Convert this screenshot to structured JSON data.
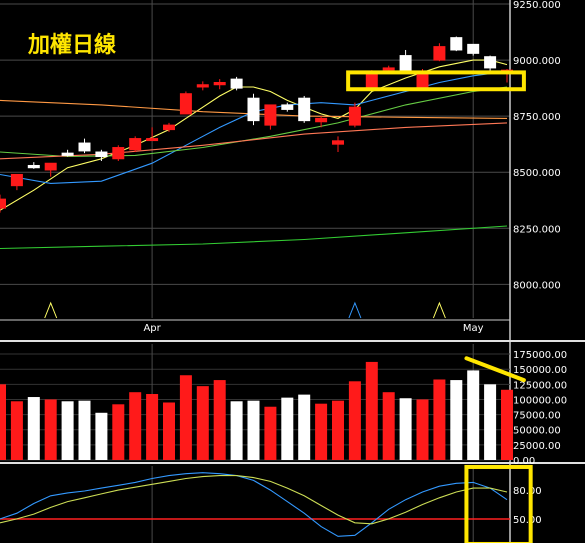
{
  "title": "加權日線",
  "colors": {
    "background": "#000000",
    "up": "#ff1a1a",
    "down": "#ffffff",
    "grid": "#4a4a4a",
    "annotation": "#ffe600",
    "ma_yellow": "#ffff66",
    "ma_blue": "#3399ff",
    "ma_green": "#66cc44",
    "ma_red": "#ff7755",
    "ma_orange": "#ff9944",
    "ma_longgreen": "#33cc33",
    "k_line": "#3399ff",
    "d_line": "#ccdd55",
    "ref_line": "#ff2020"
  },
  "chart_data": [
    {
      "type": "candlestick",
      "panel": "price",
      "ylim": [
        7850,
        9250
      ],
      "yticks": [
        "9250.000",
        "9000.000",
        "8750.000",
        "8500.000",
        "8250.000",
        "8000.000"
      ],
      "ytick_values": [
        9250,
        9000,
        8750,
        8500,
        8250,
        8000
      ],
      "xtick_labels": [
        {
          "label": "Apr",
          "index": 9
        },
        {
          "label": "May",
          "index": 28
        }
      ],
      "candles": [
        {
          "o": 8340,
          "h": 8400,
          "l": 8320,
          "c": 8380
        },
        {
          "o": 8440,
          "h": 8490,
          "l": 8420,
          "c": 8490
        },
        {
          "o": 8530,
          "h": 8545,
          "l": 8515,
          "c": 8520
        },
        {
          "o": 8510,
          "h": 8540,
          "l": 8480,
          "c": 8540
        },
        {
          "o": 8585,
          "h": 8600,
          "l": 8570,
          "c": 8575
        },
        {
          "o": 8630,
          "h": 8650,
          "l": 8585,
          "c": 8595
        },
        {
          "o": 8590,
          "h": 8600,
          "l": 8550,
          "c": 8570
        },
        {
          "o": 8560,
          "h": 8620,
          "l": 8550,
          "c": 8610
        },
        {
          "o": 8600,
          "h": 8660,
          "l": 8590,
          "c": 8650
        },
        {
          "o": 8650,
          "h": 8700,
          "l": 8640,
          "c": 8650
        },
        {
          "o": 8690,
          "h": 8720,
          "l": 8680,
          "c": 8710
        },
        {
          "o": 8760,
          "h": 8860,
          "l": 8760,
          "c": 8850
        },
        {
          "o": 8880,
          "h": 8905,
          "l": 8865,
          "c": 8890
        },
        {
          "o": 8890,
          "h": 8915,
          "l": 8870,
          "c": 8900
        },
        {
          "o": 8915,
          "h": 8925,
          "l": 8865,
          "c": 8875
        },
        {
          "o": 8830,
          "h": 8850,
          "l": 8710,
          "c": 8730
        },
        {
          "o": 8710,
          "h": 8800,
          "l": 8690,
          "c": 8800
        },
        {
          "o": 8800,
          "h": 8810,
          "l": 8770,
          "c": 8780
        },
        {
          "o": 8830,
          "h": 8840,
          "l": 8720,
          "c": 8730
        },
        {
          "o": 8725,
          "h": 8750,
          "l": 8700,
          "c": 8740
        },
        {
          "o": 8625,
          "h": 8660,
          "l": 8590,
          "c": 8640
        },
        {
          "o": 8710,
          "h": 8810,
          "l": 8700,
          "c": 8790
        },
        {
          "o": 8880,
          "h": 8955,
          "l": 8870,
          "c": 8950
        },
        {
          "o": 8960,
          "h": 8975,
          "l": 8950,
          "c": 8965
        },
        {
          "o": 9020,
          "h": 9045,
          "l": 8945,
          "c": 8955
        },
        {
          "o": 8880,
          "h": 8960,
          "l": 8870,
          "c": 8950
        },
        {
          "o": 9000,
          "h": 9075,
          "l": 8995,
          "c": 9060
        },
        {
          "o": 9100,
          "h": 9105,
          "l": 9040,
          "c": 9045
        },
        {
          "o": 9070,
          "h": 9070,
          "l": 9020,
          "c": 9030
        },
        {
          "o": 9015,
          "h": 9020,
          "l": 8945,
          "c": 8965
        },
        {
          "o": 8940,
          "h": 8960,
          "l": 8900,
          "c": 8955
        }
      ],
      "moving_averages": [
        {
          "color_key": "ma_yellow",
          "points": [
            [
              0,
              8330
            ],
            [
              2,
              8420
            ],
            [
              4,
              8520
            ],
            [
              6,
              8560
            ],
            [
              8,
              8620
            ],
            [
              10,
              8690
            ],
            [
              12,
              8790
            ],
            [
              13,
              8840
            ],
            [
              14,
              8880
            ],
            [
              15,
              8880
            ],
            [
              16,
              8860
            ],
            [
              17,
              8820
            ],
            [
              18,
              8790
            ],
            [
              19,
              8760
            ],
            [
              20,
              8740
            ],
            [
              21,
              8780
            ],
            [
              22,
              8860
            ],
            [
              24,
              8920
            ],
            [
              26,
              8970
            ],
            [
              28,
              9000
            ],
            [
              29,
              9000
            ],
            [
              30,
              8980
            ]
          ]
        },
        {
          "color_key": "ma_blue",
          "points": [
            [
              0,
              8490
            ],
            [
              3,
              8450
            ],
            [
              6,
              8460
            ],
            [
              9,
              8540
            ],
            [
              11,
              8620
            ],
            [
              13,
              8700
            ],
            [
              15,
              8770
            ],
            [
              17,
              8800
            ],
            [
              19,
              8810
            ],
            [
              21,
              8800
            ],
            [
              22,
              8820
            ],
            [
              24,
              8860
            ],
            [
              26,
              8900
            ],
            [
              28,
              8930
            ],
            [
              30,
              8950
            ]
          ]
        },
        {
          "color_key": "ma_green",
          "points": [
            [
              0,
              8590
            ],
            [
              4,
              8570
            ],
            [
              8,
              8575
            ],
            [
              12,
              8610
            ],
            [
              16,
              8660
            ],
            [
              20,
              8720
            ],
            [
              24,
              8800
            ],
            [
              28,
              8860
            ],
            [
              30,
              8880
            ]
          ]
        },
        {
          "color_key": "ma_red",
          "points": [
            [
              0,
              8560
            ],
            [
              6,
              8580
            ],
            [
              12,
              8620
            ],
            [
              18,
              8670
            ],
            [
              24,
              8700
            ],
            [
              30,
              8720
            ]
          ]
        },
        {
          "color_key": "ma_orange",
          "points": [
            [
              0,
              8820
            ],
            [
              6,
              8800
            ],
            [
              12,
              8770
            ],
            [
              18,
              8750
            ],
            [
              24,
              8745
            ],
            [
              30,
              8740
            ]
          ]
        },
        {
          "color_key": "ma_longgreen",
          "points": [
            [
              0,
              8160
            ],
            [
              6,
              8170
            ],
            [
              12,
              8180
            ],
            [
              18,
              8200
            ],
            [
              24,
              8230
            ],
            [
              30,
              8260
            ]
          ]
        }
      ],
      "indicator_marks": [
        3,
        21,
        26
      ]
    },
    {
      "type": "bar",
      "panel": "volume",
      "ylim": [
        0,
        185000
      ],
      "yticks": [
        "175000.00",
        "150000.00",
        "125000.00",
        "100000.00",
        "75000.00",
        "50000.00",
        "25000.00",
        "0.00"
      ],
      "ytick_values": [
        175000,
        150000,
        125000,
        100000,
        75000,
        50000,
        25000,
        0
      ],
      "values": [
        125000,
        97000,
        104000,
        100000,
        97000,
        98000,
        78000,
        92000,
        112000,
        109000,
        95000,
        140000,
        122000,
        132000,
        97000,
        98000,
        88000,
        103000,
        108000,
        93000,
        98000,
        130000,
        162000,
        112000,
        102000,
        100000,
        133000,
        132000,
        148000,
        125000,
        116000
      ]
    },
    {
      "type": "line",
      "panel": "kd",
      "ylim": [
        25,
        105
      ],
      "yticks": [
        "80.00",
        "50.00"
      ],
      "ytick_values": [
        80,
        50
      ],
      "ref_value": 50,
      "series": [
        {
          "color_key": "k_line",
          "values": [
            50,
            56,
            66,
            74,
            77,
            79,
            82,
            85,
            88,
            92,
            95,
            97,
            98,
            97,
            95,
            90,
            80,
            68,
            56,
            42,
            32,
            33,
            46,
            60,
            70,
            78,
            84,
            87,
            88,
            82,
            70
          ]
        },
        {
          "color_key": "d_line",
          "values": [
            46,
            50,
            55,
            62,
            68,
            72,
            76,
            80,
            83,
            86,
            89,
            92,
            94,
            95,
            95,
            93,
            89,
            82,
            74,
            64,
            54,
            46,
            45,
            50,
            57,
            65,
            72,
            78,
            82,
            82,
            78
          ]
        }
      ]
    }
  ],
  "annotations": [
    {
      "type": "rect",
      "panel": "price",
      "x_index_range": [
        20.6,
        31.0
      ],
      "y_range": [
        8870,
        8945
      ]
    },
    {
      "type": "line",
      "panel": "volume",
      "from": {
        "index": 27.6,
        "value": 168000
      },
      "to": {
        "index": 31.0,
        "value": 132000
      }
    },
    {
      "type": "rect",
      "panel": "kd",
      "x_index_range": [
        27.6,
        31.4
      ],
      "y_range": [
        24,
        104
      ]
    }
  ]
}
